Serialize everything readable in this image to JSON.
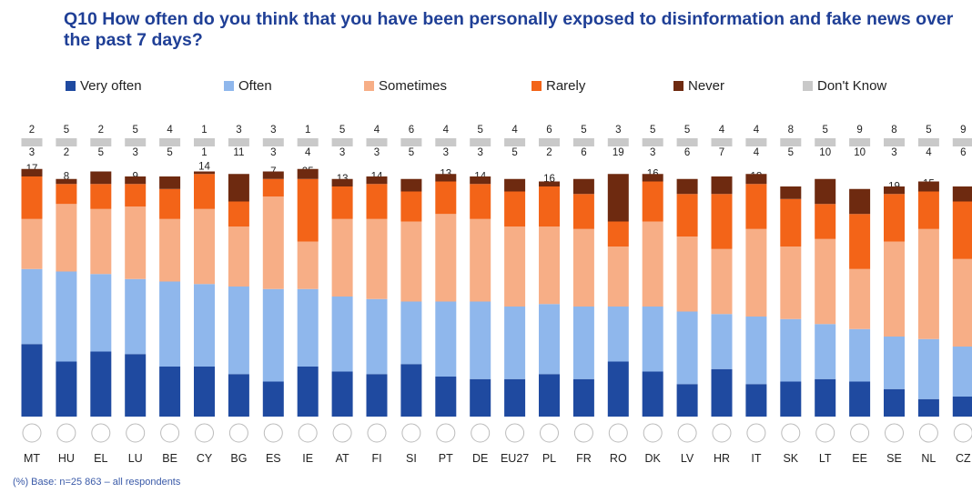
{
  "chart_data": {
    "type": "bar",
    "stacked": true,
    "orientation": "vertical",
    "title": "Q10 How often do you think that you have been personally exposed to disinformation and fake news over the past 7 days?",
    "footnote": "(%) Base: n=25 863 – all respondents",
    "legend_position": "top",
    "grid": false,
    "categories": [
      "MT",
      "HU",
      "EL",
      "LU",
      "BE",
      "CY",
      "BG",
      "ES",
      "IE",
      "AT",
      "FI",
      "SI",
      "PT",
      "DE",
      "EU27",
      "PL",
      "FR",
      "RO",
      "DK",
      "LV",
      "HR",
      "IT",
      "SK",
      "LT",
      "EE",
      "SE",
      "NL",
      "CZ"
    ],
    "series": [
      {
        "name": "Very often",
        "color": "#1f4aa0",
        "values": [
          29,
          22,
          26,
          25,
          20,
          20,
          17,
          14,
          20,
          18,
          17,
          21,
          16,
          15,
          15,
          17,
          15,
          22,
          18,
          13,
          19,
          13,
          14,
          15,
          14,
          11,
          7,
          8
        ]
      },
      {
        "name": "Often",
        "color": "#8fb7ec",
        "values": [
          30,
          36,
          31,
          30,
          34,
          33,
          35,
          37,
          31,
          30,
          30,
          25,
          30,
          31,
          29,
          28,
          29,
          22,
          26,
          29,
          22,
          27,
          25,
          22,
          21,
          21,
          24,
          20
        ]
      },
      {
        "name": "Sometimes",
        "color": "#f7ae86",
        "values": [
          20,
          27,
          26,
          29,
          25,
          30,
          24,
          37,
          19,
          31,
          32,
          32,
          35,
          33,
          32,
          31,
          31,
          24,
          34,
          30,
          26,
          35,
          29,
          34,
          24,
          38,
          44,
          35
        ]
      },
      {
        "name": "Rarely",
        "color": "#f36418",
        "values": [
          17,
          8,
          10,
          9,
          12,
          14,
          10,
          7,
          25,
          13,
          14,
          12,
          13,
          14,
          14,
          16,
          14,
          10,
          16,
          17,
          22,
          18,
          19,
          14,
          22,
          19,
          15,
          23
        ]
      },
      {
        "name": "Never",
        "color": "#6e2a10",
        "values": [
          3,
          2,
          5,
          3,
          5,
          1,
          11,
          3,
          4,
          3,
          3,
          5,
          3,
          3,
          5,
          2,
          6,
          19,
          3,
          6,
          7,
          4,
          5,
          10,
          10,
          3,
          4,
          6
        ]
      },
      {
        "name": "Don't Know",
        "color": "#c9c9c9",
        "values": [
          2,
          5,
          2,
          5,
          4,
          1,
          3,
          3,
          1,
          5,
          4,
          6,
          4,
          5,
          4,
          6,
          5,
          3,
          5,
          5,
          4,
          4,
          8,
          5,
          9,
          8,
          5,
          9
        ]
      }
    ],
    "flag_icons": [
      "mt-flag-icon",
      "hu-flag-icon",
      "el-flag-icon",
      "lu-flag-icon",
      "be-flag-icon",
      "cy-flag-icon",
      "bg-flag-icon",
      "es-flag-icon",
      "ie-flag-icon",
      "at-flag-icon",
      "fi-flag-icon",
      "si-flag-icon",
      "pt-flag-icon",
      "de-flag-icon",
      "eu27-flag-icon",
      "pl-flag-icon",
      "fr-flag-icon",
      "ro-flag-icon",
      "dk-flag-icon",
      "lv-flag-icon",
      "hr-flag-icon",
      "it-flag-icon",
      "sk-flag-icon",
      "lt-flag-icon",
      "ee-flag-icon",
      "se-flag-icon",
      "nl-flag-icon",
      "cz-flag-icon"
    ]
  }
}
